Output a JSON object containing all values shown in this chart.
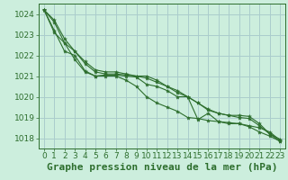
{
  "title": "Graphe pression niveau de la mer (hPa)",
  "bg_color": "#cceedd",
  "grid_color": "#aacccc",
  "line_color": "#2d6e2d",
  "marker_color": "#2d6e2d",
  "ylim": [
    1017.5,
    1024.5
  ],
  "xlim": [
    -0.5,
    23.5
  ],
  "yticks": [
    1018,
    1019,
    1020,
    1021,
    1022,
    1023,
    1024
  ],
  "xticks": [
    0,
    1,
    2,
    3,
    4,
    5,
    6,
    7,
    8,
    9,
    10,
    11,
    12,
    13,
    14,
    15,
    16,
    17,
    18,
    19,
    20,
    21,
    22,
    23
  ],
  "series": [
    [
      1024.2,
      1023.7,
      1022.8,
      1022.2,
      1021.7,
      1021.3,
      1021.2,
      1021.2,
      1021.1,
      1021.0,
      1021.0,
      1020.8,
      1020.5,
      1020.3,
      1020.0,
      1018.9,
      1019.2,
      1018.8,
      1018.7,
      1018.7,
      1018.6,
      1018.5,
      1018.3,
      1017.9
    ],
    [
      1024.2,
      1023.6,
      1022.6,
      1022.2,
      1021.6,
      1021.2,
      1021.1,
      1021.1,
      1021.05,
      1021.0,
      1020.9,
      1020.7,
      1020.5,
      1020.2,
      1020.0,
      1019.7,
      1019.35,
      1019.2,
      1019.1,
      1019.1,
      1019.05,
      1018.7,
      1018.2,
      1017.95
    ],
    [
      1024.2,
      1023.2,
      1022.2,
      1022.0,
      1021.25,
      1021.0,
      1021.05,
      1021.05,
      1021.0,
      1020.95,
      1020.6,
      1020.5,
      1020.3,
      1020.0,
      1020.0,
      1019.7,
      1019.4,
      1019.2,
      1019.1,
      1019.0,
      1018.95,
      1018.6,
      1018.2,
      1017.85
    ],
    [
      1024.2,
      1023.1,
      1022.6,
      1021.8,
      1021.2,
      1021.0,
      1021.0,
      1021.0,
      1020.8,
      1020.5,
      1020.0,
      1019.7,
      1019.5,
      1019.3,
      1019.0,
      1018.95,
      1018.85,
      1018.8,
      1018.75,
      1018.7,
      1018.55,
      1018.3,
      1018.1,
      1017.85
    ]
  ],
  "title_fontsize": 8,
  "tick_fontsize": 6.5
}
